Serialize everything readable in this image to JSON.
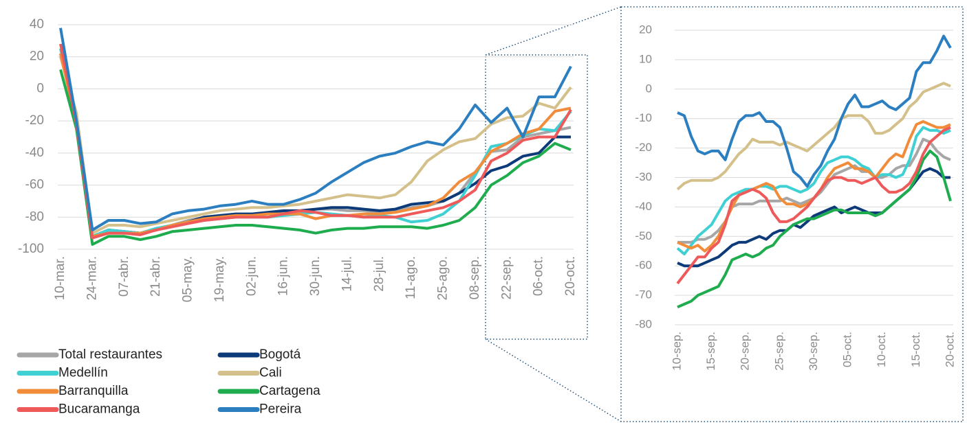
{
  "chart_data": [
    {
      "type": "line",
      "categories": [
        "10-mar.",
        null,
        "24-mar.",
        null,
        "07-abr.",
        null,
        "21-abr.",
        null,
        "05-may.",
        null,
        "19-may.",
        null,
        "02-jun.",
        null,
        "16-jun.",
        null,
        "30-jun.",
        null,
        "14-jul.",
        null,
        "28-jul.",
        null,
        "11-ago.",
        null,
        "25-ago.",
        null,
        "08-sep.",
        null,
        "22-sep.",
        null,
        "06-oct.",
        null,
        "20-oct."
      ],
      "ylim": [
        -100,
        40
      ],
      "yticks": [
        -100,
        -80,
        -60,
        -40,
        -20,
        0,
        20,
        40
      ],
      "grid": true,
      "series": [
        {
          "name": "Total restaurantes",
          "color": "#a6a6a6",
          "values": [
            25,
            -20,
            -92,
            -88,
            -89,
            -90,
            -88,
            -85,
            -82,
            -80,
            -79,
            -78,
            -78,
            -78,
            -77,
            -77,
            -75,
            -75,
            -76,
            -76,
            -77,
            -76,
            -74,
            -73,
            -70,
            -65,
            -52,
            -39,
            -38,
            -30,
            -28,
            -26,
            -24
          ]
        },
        {
          "name": "Bogotá",
          "color": "#0d3b7a",
          "values": [
            22,
            -20,
            -92,
            -88,
            -89,
            -90,
            -88,
            -85,
            -83,
            -80,
            -79,
            -78,
            -78,
            -77,
            -76,
            -76,
            -75,
            -74,
            -74,
            -75,
            -76,
            -75,
            -72,
            -71,
            -70,
            -65,
            -59,
            -51,
            -48,
            -42,
            -40,
            -30,
            -30
          ]
        },
        {
          "name": "Medellín",
          "color": "#3fd0d4",
          "values": [
            25,
            -20,
            -92,
            -88,
            -89,
            -90,
            -87,
            -85,
            -83,
            -82,
            -81,
            -80,
            -80,
            -80,
            -79,
            -78,
            -77,
            -78,
            -79,
            -80,
            -79,
            -80,
            -83,
            -82,
            -78,
            -70,
            -54,
            -36,
            -34,
            -29,
            -25,
            -26,
            -14
          ]
        },
        {
          "name": "Cali",
          "color": "#d4c08a",
          "values": [
            20,
            -15,
            -90,
            -85,
            -85,
            -86,
            -84,
            -82,
            -80,
            -78,
            -76,
            -75,
            -74,
            -74,
            -73,
            -72,
            -70,
            -68,
            -66,
            -67,
            -68,
            -66,
            -58,
            -45,
            -38,
            -33,
            -31,
            -22,
            -18,
            -17,
            -9,
            -12,
            1
          ]
        },
        {
          "name": "Barranquilla",
          "color": "#f08c3a",
          "values": [
            22,
            -22,
            -92,
            -90,
            -90,
            -90,
            -88,
            -85,
            -83,
            -81,
            -80,
            -79,
            -79,
            -78,
            -78,
            -78,
            -81,
            -79,
            -79,
            -78,
            -78,
            -77,
            -75,
            -73,
            -68,
            -58,
            -52,
            -39,
            -34,
            -28,
            -25,
            -14,
            -12
          ]
        },
        {
          "name": "Cartagena",
          "color": "#1fac4f",
          "values": [
            12,
            -25,
            -97,
            -92,
            -92,
            -94,
            -92,
            -89,
            -88,
            -87,
            -86,
            -85,
            -85,
            -86,
            -87,
            -88,
            -90,
            -88,
            -87,
            -87,
            -86,
            -86,
            -86,
            -87,
            -85,
            -82,
            -74,
            -60,
            -54,
            -46,
            -42,
            -34,
            -38
          ]
        },
        {
          "name": "Bucaramanga",
          "color": "#ee5a5a",
          "values": [
            28,
            -22,
            -93,
            -90,
            -90,
            -91,
            -88,
            -86,
            -84,
            -82,
            -81,
            -80,
            -80,
            -80,
            -78,
            -76,
            -77,
            -79,
            -79,
            -80,
            -80,
            -80,
            -78,
            -76,
            -74,
            -70,
            -63,
            -45,
            -40,
            -32,
            -30,
            -30,
            -13
          ]
        },
        {
          "name": "Pereira",
          "color": "#2b7fc0",
          "values": [
            38,
            -20,
            -88,
            -82,
            -82,
            -84,
            -83,
            -78,
            -76,
            -75,
            -73,
            -72,
            -70,
            -72,
            -72,
            -69,
            -65,
            -58,
            -52,
            -46,
            -42,
            -40,
            -36,
            -33,
            -35,
            -25,
            -10,
            -21,
            -12,
            -30,
            -5,
            -5,
            14
          ]
        }
      ]
    },
    {
      "type": "line",
      "categories": [
        "10-sep.",
        null,
        null,
        null,
        null,
        "15-sep.",
        null,
        null,
        null,
        null,
        "20-sep.",
        null,
        null,
        null,
        null,
        "25-sep.",
        null,
        null,
        null,
        null,
        "30-sep.",
        null,
        null,
        null,
        null,
        "05-oct.",
        null,
        null,
        null,
        null,
        "10-oct.",
        null,
        null,
        null,
        null,
        "15-oct.",
        null,
        null,
        null,
        null,
        "20-oct."
      ],
      "ylim": [
        -80,
        20
      ],
      "yticks": [
        -80,
        -70,
        -60,
        -50,
        -40,
        -30,
        -20,
        -10,
        0,
        10,
        20
      ],
      "grid": true,
      "series": [
        {
          "color": "#a6a6a6",
          "values": [
            -52,
            -52,
            -52,
            -51,
            -51,
            -50,
            -48,
            -45,
            -40,
            -39,
            -39,
            -39,
            -38,
            -38,
            -38,
            -38,
            -37,
            -38,
            -39,
            -38,
            -37,
            -35,
            -32,
            -29,
            -28,
            -27,
            -26,
            -28,
            -28,
            -30,
            -30,
            -29,
            -27,
            -26,
            -26,
            -22,
            -17,
            -18,
            -21,
            -23,
            -24
          ]
        },
        {
          "color": "#0d3b7a",
          "values": [
            -59,
            -60,
            -60,
            -60,
            -59,
            -58,
            -57,
            -55,
            -53,
            -52,
            -52,
            -51,
            -50,
            -51,
            -49,
            -48,
            -48,
            -46,
            -47,
            -45,
            -43,
            -42,
            -41,
            -40,
            -42,
            -41,
            -40,
            -41,
            -42,
            -42,
            -42,
            -40,
            -38,
            -36,
            -34,
            -31,
            -28,
            -27,
            -28,
            -30,
            -30
          ]
        },
        {
          "color": "#3fd0d4",
          "values": [
            -54,
            -56,
            -53,
            -50,
            -48,
            -46,
            -42,
            -38,
            -36,
            -35,
            -34,
            -34,
            -33,
            -33,
            -34,
            -33,
            -33,
            -34,
            -35,
            -34,
            -32,
            -28,
            -25,
            -24,
            -23,
            -23,
            -24,
            -26,
            -27,
            -30,
            -29,
            -29,
            -30,
            -29,
            -24,
            -16,
            -13,
            -14,
            -14,
            -15,
            -14
          ]
        },
        {
          "color": "#d4c08a",
          "values": [
            -34,
            -32,
            -31,
            -31,
            -31,
            -31,
            -30,
            -28,
            -25,
            -22,
            -20,
            -17,
            -18,
            -18,
            -18,
            -19,
            -18,
            -19,
            -20,
            -21,
            -19,
            -17,
            -15,
            -13,
            -10,
            -9,
            -9,
            -9,
            -11,
            -15,
            -15,
            -14,
            -12,
            -10,
            -6,
            -4,
            -1,
            0,
            1,
            2,
            1
          ]
        },
        {
          "color": "#f08c3a",
          "values": [
            -52,
            -53,
            -54,
            -53,
            -55,
            -53,
            -50,
            -45,
            -40,
            -36,
            -35,
            -34,
            -33,
            -32,
            -33,
            -37,
            -39,
            -39,
            -40,
            -39,
            -37,
            -34,
            -30,
            -27,
            -26,
            -25,
            -27,
            -27,
            -28,
            -30,
            -27,
            -24,
            -22,
            -23,
            -17,
            -12,
            -11,
            -12,
            -13,
            -13,
            -12
          ]
        },
        {
          "color": "#1fac4f",
          "values": [
            -74,
            -73,
            -72,
            -70,
            -69,
            -68,
            -67,
            -63,
            -58,
            -57,
            -56,
            -57,
            -56,
            -54,
            -53,
            -50,
            -48,
            -46,
            -45,
            -44,
            -44,
            -43,
            -42,
            -41,
            -41,
            -42,
            -42,
            -42,
            -42,
            -43,
            -42,
            -40,
            -38,
            -36,
            -34,
            -30,
            -24,
            -21,
            -23,
            -30,
            -38
          ]
        },
        {
          "color": "#ee5a5a",
          "values": [
            -66,
            -63,
            -60,
            -57,
            -57,
            -54,
            -52,
            -46,
            -38,
            -36,
            -35,
            -34,
            -35,
            -37,
            -42,
            -45,
            -45,
            -44,
            -42,
            -40,
            -37,
            -34,
            -31,
            -30,
            -30,
            -31,
            -31,
            -32,
            -31,
            -30,
            -33,
            -35,
            -35,
            -34,
            -32,
            -28,
            -22,
            -18,
            -16,
            -14,
            -13
          ]
        },
        {
          "color": "#2b7fc0",
          "values": [
            -8,
            -9,
            -16,
            -21,
            -22,
            -21,
            -21,
            -24,
            -17,
            -11,
            -9,
            -9,
            -8,
            -11,
            -11,
            -13,
            -20,
            -28,
            -30,
            -33,
            -29,
            -26,
            -21,
            -17,
            -10,
            -5,
            -2,
            -6,
            -6,
            -5,
            -4,
            -6,
            -7,
            -5,
            -3,
            6,
            9,
            9,
            13,
            18,
            14
          ]
        }
      ]
    }
  ]
}
